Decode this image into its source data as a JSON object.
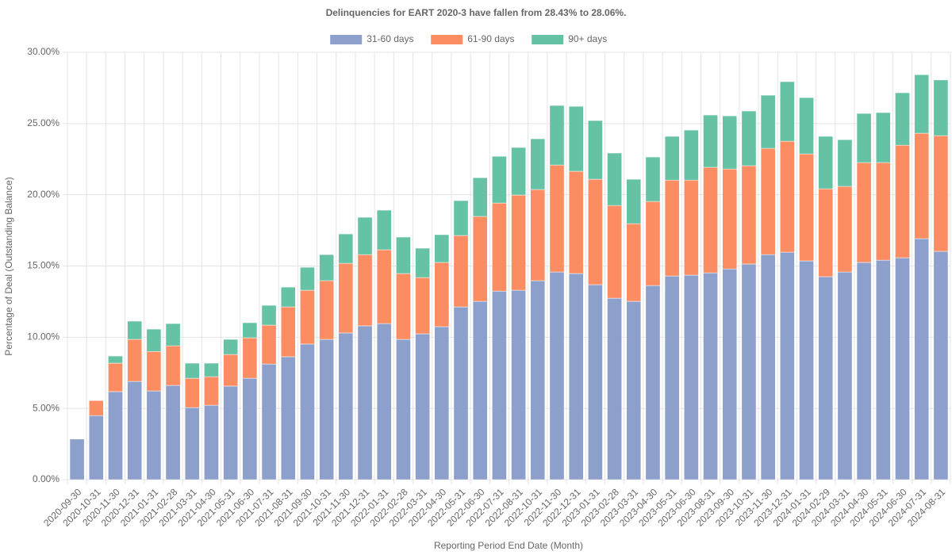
{
  "chart_data": {
    "type": "stacked_bar",
    "title": "Delinquencies for EART 2020-3 have fallen from 28.43% to 28.06%.",
    "x_label": "Reporting Period End Date (Month)",
    "y_label": "Percentage of Deal (Outstanding Balance)",
    "categories": [
      "2020-09-30",
      "2020-10-31",
      "2020-11-30",
      "2020-12-31",
      "2021-01-31",
      "2021-02-28",
      "2021-03-31",
      "2021-04-30",
      "2021-05-31",
      "2021-06-30",
      "2021-07-31",
      "2021-08-31",
      "2021-09-30",
      "2021-10-31",
      "2021-11-30",
      "2021-12-31",
      "2022-01-31",
      "2022-02-28",
      "2022-03-31",
      "2022-04-30",
      "2022-05-31",
      "2022-06-30",
      "2022-07-31",
      "2022-08-31",
      "2022-10-31",
      "2022-11-30",
      "2022-12-31",
      "2023-01-31",
      "2023-02-28",
      "2023-03-31",
      "2023-04-30",
      "2023-05-31",
      "2023-06-30",
      "2023-08-31",
      "2023-09-30",
      "2023-10-31",
      "2023-11-30",
      "2023-12-31",
      "2024-01-31",
      "2024-02-29",
      "2024-03-31",
      "2024-04-30",
      "2024-05-31",
      "2024-06-30",
      "2024-07-31",
      "2024-08-31"
    ],
    "series": [
      {
        "name": "31-60 days",
        "color": "#8da0cb",
        "values": [
          2.85,
          4.5,
          6.18,
          6.9,
          6.23,
          6.62,
          5.06,
          5.23,
          6.57,
          7.12,
          8.12,
          8.63,
          9.52,
          9.85,
          10.3,
          10.8,
          10.96,
          9.85,
          10.24,
          10.74,
          12.13,
          12.52,
          13.24,
          13.3,
          13.97,
          14.58,
          14.47,
          13.69,
          12.74,
          12.52,
          13.63,
          14.3,
          14.36,
          14.52,
          14.8,
          15.14,
          15.8,
          15.97,
          15.36,
          14.25,
          14.58,
          15.25,
          15.41,
          15.58,
          16.92,
          16.03
        ]
      },
      {
        "name": "61-90 days",
        "color": "#fc8d62",
        "values": [
          0,
          1.05,
          2.0,
          2.95,
          2.77,
          2.78,
          2.06,
          2.0,
          2.22,
          2.84,
          2.73,
          3.5,
          3.78,
          4.12,
          4.89,
          5.0,
          5.18,
          4.62,
          3.95,
          4.51,
          5.01,
          5.96,
          6.18,
          6.68,
          6.4,
          7.51,
          7.18,
          7.4,
          6.51,
          5.45,
          5.9,
          6.73,
          6.67,
          7.41,
          7.01,
          6.9,
          7.46,
          7.79,
          7.51,
          6.17,
          6.01,
          7.01,
          6.85,
          7.9,
          7.4,
          8.12
        ]
      },
      {
        "name": "90+ days",
        "color": "#66c2a5",
        "values": [
          0,
          0,
          0.5,
          1.28,
          1.57,
          1.56,
          1.06,
          0.95,
          1.06,
          1.06,
          1.39,
          1.39,
          1.61,
          1.83,
          2.06,
          2.62,
          2.78,
          2.56,
          2.06,
          1.95,
          2.45,
          2.72,
          3.28,
          3.34,
          3.56,
          4.18,
          4.56,
          4.12,
          3.68,
          3.12,
          3.12,
          3.07,
          3.51,
          3.67,
          3.73,
          3.84,
          3.73,
          4.18,
          3.95,
          3.68,
          3.28,
          3.45,
          3.51,
          3.68,
          4.11,
          3.91
        ]
      }
    ],
    "ylim": [
      0,
      30
    ],
    "yticks": [
      {
        "value": 0,
        "label": "0.00%"
      },
      {
        "value": 5,
        "label": "5.00%"
      },
      {
        "value": 10,
        "label": "10.00%"
      },
      {
        "value": 15,
        "label": "15.00%"
      },
      {
        "value": 20,
        "label": "20.00%"
      },
      {
        "value": 25,
        "label": "25.00%"
      },
      {
        "value": 30,
        "label": "30.00%"
      }
    ],
    "grid": true,
    "legend": "top"
  }
}
